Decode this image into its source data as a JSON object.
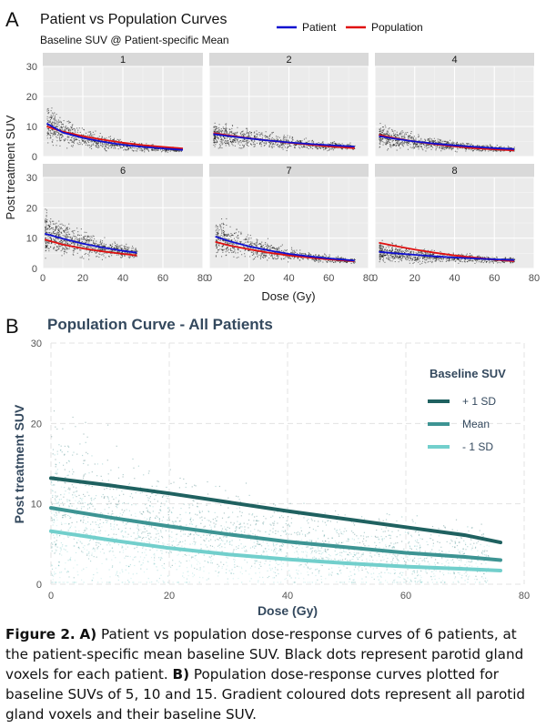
{
  "panel_a": {
    "letter": "A",
    "title": "Patient vs Population Curves",
    "subtitle": "Baseline SUV @ Patient-specific Mean",
    "legend": [
      {
        "label": "Patient",
        "color": "#1010d0"
      },
      {
        "label": "Population",
        "color": "#e01010"
      }
    ]
  },
  "panel_b": {
    "letter": "B",
    "title": "Population Curve - All Patients",
    "legend_title": "Baseline SUV",
    "legend": [
      {
        "label": "+ 1 SD",
        "color": "#1f6160"
      },
      {
        "label": "Mean",
        "color": "#3d9493"
      },
      {
        "label": "- 1 SD",
        "color": "#72cfcc"
      }
    ]
  },
  "caption": {
    "fig_label": "Figure 2.",
    "a_marker": "A)",
    "a_text": " Patient vs population dose-response curves of 6 patients, at the patient-specific mean baseline SUV. Black dots represent parotid gland voxels for each patient. ",
    "b_marker": "B)",
    "b_text": " Population dose-response curves plotted for baseline SUVs of 5, 10 and 15. Gradient coloured dots represent all parotid gland voxels and their baseline SUV."
  },
  "chart_data": [
    {
      "type": "scatter",
      "title": "Patient vs Population Curves",
      "subtitle": "Baseline SUV @ Patient-specific Mean",
      "xlabel": "Dose (Gy)",
      "ylabel": "Post treatment SUV",
      "xlim": [
        0,
        80
      ],
      "ylim": [
        0,
        30
      ],
      "xticks": [
        0,
        20,
        40,
        60,
        80
      ],
      "yticks": [
        0,
        10,
        20,
        30
      ],
      "legend_position": "top",
      "facets": [
        {
          "label": "1",
          "dose_range": [
            2,
            70
          ],
          "patient": {
            "x": [
              2,
              10,
              20,
              30,
              40,
              50,
              60,
              70
            ],
            "y": [
              11.0,
              8.0,
              6.2,
              4.9,
              3.9,
              3.2,
              2.7,
              2.2
            ]
          },
          "population": {
            "x": [
              2,
              10,
              20,
              30,
              40,
              50,
              60,
              70
            ],
            "y": [
              10.0,
              8.3,
              6.8,
              5.6,
              4.6,
              3.8,
              3.2,
              2.7
            ]
          }
        },
        {
          "label": "2",
          "dose_range": [
            2,
            73
          ],
          "patient": {
            "x": [
              2,
              10,
              20,
              30,
              40,
              50,
              60,
              73
            ],
            "y": [
              7.5,
              6.8,
              6.0,
              5.3,
              4.7,
              4.2,
              3.8,
              3.3
            ]
          },
          "population": {
            "x": [
              2,
              10,
              20,
              30,
              40,
              50,
              60,
              73
            ],
            "y": [
              7.8,
              7.0,
              6.1,
              5.3,
              4.6,
              4.0,
              3.4,
              2.8
            ]
          }
        },
        {
          "label": "4",
          "dose_range": [
            2,
            70
          ],
          "patient": {
            "x": [
              2,
              10,
              20,
              30,
              40,
              50,
              60,
              70
            ],
            "y": [
              6.8,
              5.9,
              5.0,
              4.3,
              3.7,
              3.2,
              2.8,
              2.5
            ]
          },
          "population": {
            "x": [
              2,
              10,
              20,
              30,
              40,
              50,
              60,
              70
            ],
            "y": [
              7.2,
              6.1,
              5.0,
              4.1,
              3.4,
              2.8,
              2.4,
              2.0
            ]
          }
        },
        {
          "label": "6",
          "dose_range": [
            1,
            47
          ],
          "patient": {
            "x": [
              1,
              10,
              20,
              30,
              40,
              47
            ],
            "y": [
              11.5,
              9.8,
              8.2,
              6.9,
              5.8,
              5.2
            ]
          },
          "population": {
            "x": [
              1,
              10,
              20,
              30,
              40,
              47
            ],
            "y": [
              9.5,
              7.9,
              6.6,
              5.6,
              4.8,
              4.3
            ]
          }
        },
        {
          "label": "7",
          "dose_range": [
            3,
            73
          ],
          "patient": {
            "x": [
              3,
              10,
              20,
              30,
              40,
              50,
              60,
              73
            ],
            "y": [
              10.5,
              9.0,
              7.3,
              5.9,
              4.8,
              4.0,
              3.3,
              2.6
            ]
          },
          "population": {
            "x": [
              3,
              10,
              20,
              30,
              40,
              50,
              60,
              73
            ],
            "y": [
              8.8,
              7.6,
              6.3,
              5.2,
              4.3,
              3.6,
              3.0,
              2.4
            ]
          }
        },
        {
          "label": "8",
          "dose_range": [
            2,
            70
          ],
          "patient": {
            "x": [
              2,
              10,
              20,
              30,
              40,
              50,
              60,
              70
            ],
            "y": [
              5.5,
              5.0,
              4.5,
              4.0,
              3.6,
              3.3,
              3.0,
              2.8
            ]
          },
          "population": {
            "x": [
              2,
              10,
              20,
              30,
              40,
              50,
              60,
              70
            ],
            "y": [
              8.5,
              7.4,
              6.2,
              5.2,
              4.3,
              3.6,
              2.9,
              2.4
            ]
          }
        }
      ]
    },
    {
      "type": "scatter",
      "title": "Population Curve - All Patients",
      "xlabel": "Dose (Gy)",
      "ylabel": "Post treatment SUV",
      "xlim": [
        0,
        80
      ],
      "ylim": [
        0,
        30
      ],
      "xticks": [
        0,
        20,
        40,
        60,
        80
      ],
      "yticks": [
        0,
        10,
        20,
        30
      ],
      "legend_title": "Baseline SUV",
      "legend_position": "top-right",
      "series": [
        {
          "name": "+ 1 SD",
          "color": "#1f6160",
          "x": [
            0,
            10,
            20,
            30,
            40,
            50,
            60,
            70,
            76
          ],
          "y": [
            13.2,
            12.3,
            11.3,
            10.2,
            9.1,
            8.1,
            7.1,
            6.1,
            5.2
          ]
        },
        {
          "name": "Mean",
          "color": "#3d9493",
          "x": [
            0,
            10,
            20,
            30,
            40,
            50,
            60,
            70,
            76
          ],
          "y": [
            9.5,
            8.3,
            7.2,
            6.2,
            5.3,
            4.6,
            3.9,
            3.4,
            3.0
          ]
        },
        {
          "name": "- 1 SD",
          "color": "#72cfcc",
          "x": [
            0,
            10,
            20,
            30,
            40,
            50,
            60,
            70,
            76
          ],
          "y": [
            6.6,
            5.5,
            4.5,
            3.7,
            3.1,
            2.6,
            2.2,
            1.9,
            1.7
          ]
        }
      ]
    }
  ]
}
